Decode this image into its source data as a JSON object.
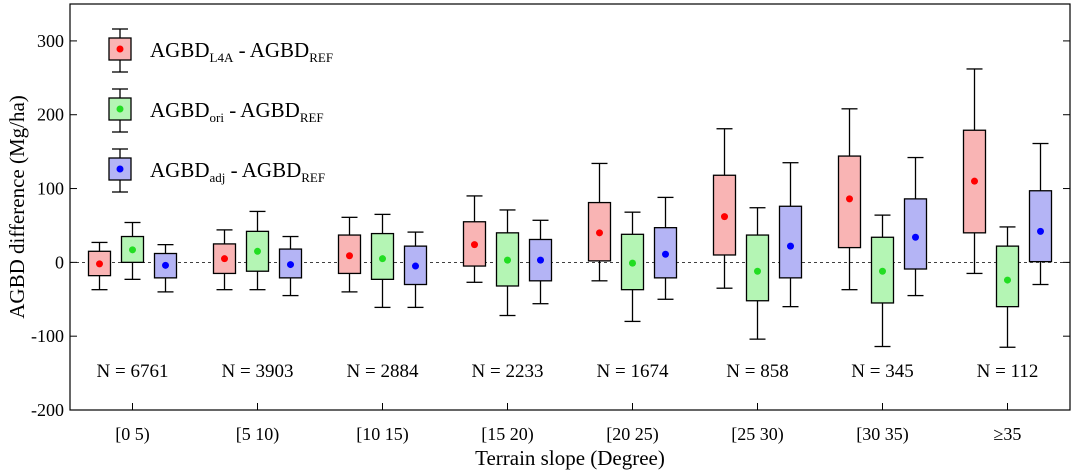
{
  "chart_data": {
    "type": "box",
    "xlabel": "Terrain slope (Degree)",
    "ylabel": "AGBD difference (Mg/ha)",
    "ylim": [
      -200,
      350
    ],
    "yticks": [
      -200,
      -100,
      0,
      100,
      200,
      300
    ],
    "reference_line": 0,
    "grid": false,
    "legend_position": "top-left",
    "categories": [
      "[0 5)",
      "[5 10)",
      "[10 15)",
      "[15 20)",
      "[20 25)",
      "[25 30)",
      "[30 35)",
      "≥35"
    ],
    "sample_counts": [
      "N = 6761",
      "N = 3903",
      "N = 2884",
      "N = 2233",
      "N = 1674",
      "N = 858",
      "N = 345",
      "N = 112"
    ],
    "series": [
      {
        "legend": {
          "main": "AGBD",
          "sub": "L4A",
          "rest": " - AGBD",
          "sub2": "REF"
        },
        "fill": "#f9b4b4",
        "dot": "#ff0000",
        "boxes": [
          {
            "whisker_low": -37,
            "q1": -18,
            "mean": -2,
            "q3": 15,
            "whisker_high": 27
          },
          {
            "whisker_low": -37,
            "q1": -15,
            "mean": 5,
            "q3": 25,
            "whisker_high": 44
          },
          {
            "whisker_low": -40,
            "q1": -15,
            "mean": 9,
            "q3": 37,
            "whisker_high": 61
          },
          {
            "whisker_low": -27,
            "q1": -5,
            "mean": 24,
            "q3": 55,
            "whisker_high": 90
          },
          {
            "whisker_low": -25,
            "q1": 2,
            "mean": 40,
            "q3": 81,
            "whisker_high": 134
          },
          {
            "whisker_low": -35,
            "q1": 10,
            "mean": 62,
            "q3": 118,
            "whisker_high": 181
          },
          {
            "whisker_low": -37,
            "q1": 20,
            "mean": 86,
            "q3": 144,
            "whisker_high": 208
          },
          {
            "whisker_low": -15,
            "q1": 40,
            "mean": 110,
            "q3": 179,
            "whisker_high": 262
          }
        ]
      },
      {
        "legend": {
          "main": "AGBD",
          "sub": "ori",
          "rest": " - AGBD",
          "sub2": "REF"
        },
        "fill": "#b4f5b4",
        "dot": "#22dd22",
        "boxes": [
          {
            "whisker_low": -23,
            "q1": 0,
            "mean": 17,
            "q3": 35,
            "whisker_high": 54
          },
          {
            "whisker_low": -37,
            "q1": -12,
            "mean": 15,
            "q3": 42,
            "whisker_high": 69
          },
          {
            "whisker_low": -61,
            "q1": -23,
            "mean": 5,
            "q3": 39,
            "whisker_high": 65
          },
          {
            "whisker_low": -72,
            "q1": -32,
            "mean": 3,
            "q3": 40,
            "whisker_high": 71
          },
          {
            "whisker_low": -80,
            "q1": -37,
            "mean": -1,
            "q3": 38,
            "whisker_high": 68
          },
          {
            "whisker_low": -104,
            "q1": -52,
            "mean": -12,
            "q3": 37,
            "whisker_high": 74
          },
          {
            "whisker_low": -114,
            "q1": -55,
            "mean": -12,
            "q3": 34,
            "whisker_high": 64
          },
          {
            "whisker_low": -115,
            "q1": -60,
            "mean": -24,
            "q3": 22,
            "whisker_high": 48
          }
        ]
      },
      {
        "legend": {
          "main": "AGBD",
          "sub": "adj",
          "rest": " - AGBD",
          "sub2": "REF"
        },
        "fill": "#b4b4f5",
        "dot": "#0000ff",
        "boxes": [
          {
            "whisker_low": -40,
            "q1": -21,
            "mean": -4,
            "q3": 12,
            "whisker_high": 24
          },
          {
            "whisker_low": -45,
            "q1": -21,
            "mean": -3,
            "q3": 18,
            "whisker_high": 35
          },
          {
            "whisker_low": -61,
            "q1": -30,
            "mean": -5,
            "q3": 22,
            "whisker_high": 41
          },
          {
            "whisker_low": -56,
            "q1": -25,
            "mean": 3,
            "q3": 31,
            "whisker_high": 57
          },
          {
            "whisker_low": -50,
            "q1": -21,
            "mean": 11,
            "q3": 47,
            "whisker_high": 88
          },
          {
            "whisker_low": -60,
            "q1": -21,
            "mean": 22,
            "q3": 76,
            "whisker_high": 135
          },
          {
            "whisker_low": -45,
            "q1": -9,
            "mean": 34,
            "q3": 86,
            "whisker_high": 142
          },
          {
            "whisker_low": -30,
            "q1": 1,
            "mean": 42,
            "q3": 97,
            "whisker_high": 161
          }
        ]
      }
    ]
  }
}
